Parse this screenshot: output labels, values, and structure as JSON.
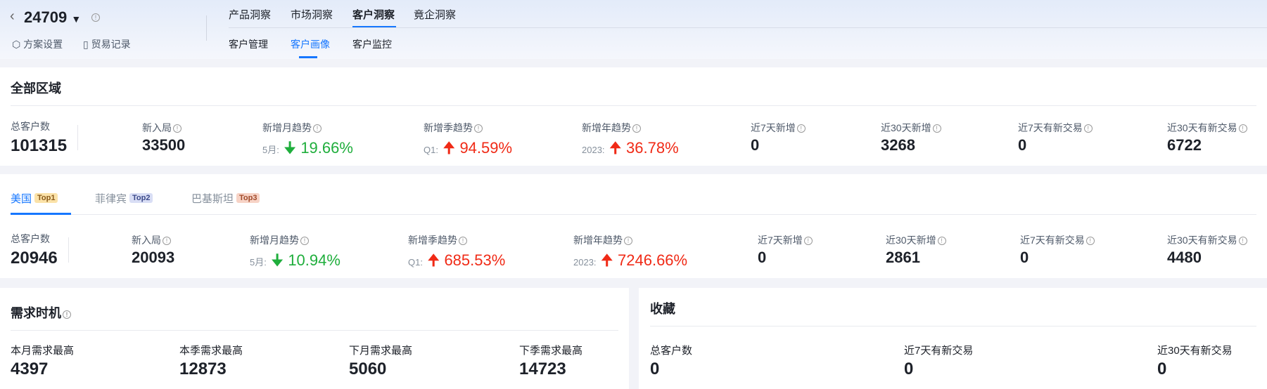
{
  "header": {
    "back_icon": "chevron-left",
    "plan_id": "24709",
    "settings": "方案设置",
    "trade_records": "贸易记录",
    "nav": [
      "产品洞察",
      "市场洞察",
      "客户洞察",
      "竟企洞察"
    ],
    "active_nav": "客户洞察",
    "subnav": [
      "客户管理",
      "客户画像",
      "客户监控"
    ],
    "active_subnav": "客户画像"
  },
  "colors": {
    "accent": "#1677ff",
    "down": "#1fae3c",
    "up": "#f02a16"
  },
  "all_region": {
    "title": "全部区域",
    "total_label": "总客户数",
    "total": "101315",
    "metrics": [
      {
        "label": "新入局",
        "value": "33500"
      },
      {
        "label": "新增月趋势",
        "prefix": "5月:",
        "value": "19.66%",
        "dir": "down"
      },
      {
        "label": "新增季趋势",
        "prefix": "Q1:",
        "value": "94.59%",
        "dir": "up"
      },
      {
        "label": "新增年趋势",
        "prefix": "2023:",
        "value": "36.78%",
        "dir": "up"
      },
      {
        "label": "近7天新增",
        "value": "0"
      },
      {
        "label": "近30天新增",
        "value": "3268"
      },
      {
        "label": "近7天有新交易",
        "value": "0"
      },
      {
        "label": "近30天有新交易",
        "value": "6722"
      }
    ]
  },
  "countries": {
    "tabs": [
      {
        "name": "美国",
        "badge": "Top1"
      },
      {
        "name": "菲律宾",
        "badge": "Top2"
      },
      {
        "name": "巴基斯坦",
        "badge": "Top3"
      }
    ],
    "active": "美国",
    "total_label": "总客户数",
    "total": "20946",
    "metrics": [
      {
        "label": "新入局",
        "value": "20093"
      },
      {
        "label": "新增月趋势",
        "prefix": "5月:",
        "value": "10.94%",
        "dir": "down"
      },
      {
        "label": "新增季趋势",
        "prefix": "Q1:",
        "value": "685.53%",
        "dir": "up"
      },
      {
        "label": "新增年趋势",
        "prefix": "2023:",
        "value": "7246.66%",
        "dir": "up"
      },
      {
        "label": "近7天新增",
        "value": "0"
      },
      {
        "label": "近30天新增",
        "value": "2861"
      },
      {
        "label": "近7天有新交易",
        "value": "0"
      },
      {
        "label": "近30天有新交易",
        "value": "4480"
      }
    ]
  },
  "demand": {
    "title": "需求时机",
    "items": [
      {
        "label": "本月需求最高",
        "value": "4397"
      },
      {
        "label": "本季需求最高",
        "value": "12873"
      },
      {
        "label": "下月需求最高",
        "value": "5060"
      },
      {
        "label": "下季需求最高",
        "value": "14723"
      }
    ]
  },
  "favorites": {
    "title": "收藏",
    "items": [
      {
        "label": "总客户数",
        "value": "0"
      },
      {
        "label": "近7天有新交易",
        "value": "0"
      },
      {
        "label": "近30天有新交易",
        "value": "0"
      }
    ]
  }
}
